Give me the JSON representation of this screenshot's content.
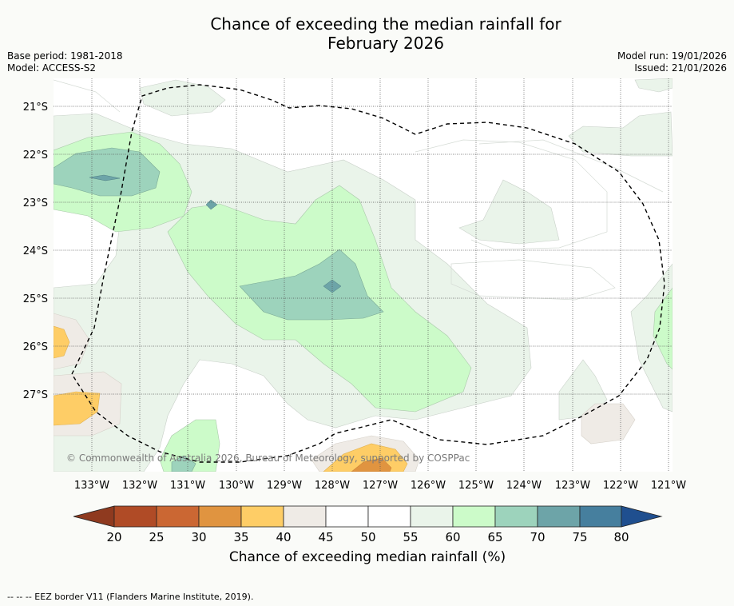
{
  "title": {
    "line1": "Chance of exceeding the median rainfall for",
    "line2": "February 2026"
  },
  "meta": {
    "base_period": "Base period: 1981-2018",
    "model": "Model: ACCESS-S2",
    "model_run": "Model run: 19/01/2026",
    "issued": "Issued: 21/01/2026"
  },
  "map": {
    "lat_labels": [
      "21°S",
      "22°S",
      "23°S",
      "24°S",
      "25°S",
      "26°S",
      "27°S"
    ],
    "lon_labels": [
      "133°W",
      "132°W",
      "131°W",
      "130°W",
      "129°W",
      "128°W",
      "127°W",
      "126°W",
      "125°W",
      "124°W",
      "123°W",
      "122°W",
      "121°W"
    ],
    "copyright": "© Commonwealth of Australia 2026, Bureau of Meteorology, supported by COSPPac"
  },
  "colorbar": {
    "ticks": [
      "20",
      "25",
      "30",
      "35",
      "40",
      "45",
      "50",
      "55",
      "60",
      "65",
      "70",
      "75",
      "80"
    ],
    "label": "Chance of exceeding median rainfall (%)",
    "colors": {
      "under": "#8f3a1f",
      "20-25": "#b04b26",
      "25-30": "#cb6733",
      "30-35": "#e09440",
      "35-40": "#fecd66",
      "40-45": "#efebe6",
      "45-50": "#ffffff",
      "50-55": "#ffffff",
      "55-60": "#eaf4ea",
      "60-65": "#ccfbc9",
      "65-70": "#9dd3bc",
      "70-75": "#6da4a8",
      "75-80": "#467f9e",
      "over": "#1f4f8f"
    }
  },
  "footnote": "--  --  -- EEZ border V11 (Flanders Marine Institute, 2019)."
}
